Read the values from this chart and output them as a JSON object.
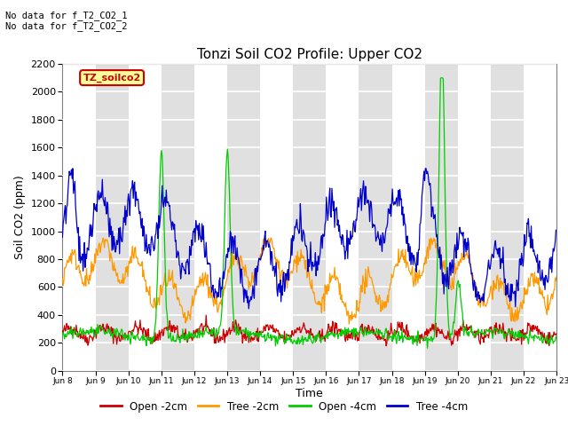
{
  "title": "Tonzi Soil CO2 Profile: Upper CO2",
  "ylabel": "Soil CO2 (ppm)",
  "xlabel": "Time",
  "annotations": [
    "No data for f_T2_CO2_1",
    "No data for f_T2_CO2_2"
  ],
  "legend_label": "TZ_soilco2",
  "ylim": [
    0,
    2200
  ],
  "yticks": [
    0,
    200,
    400,
    600,
    800,
    1000,
    1200,
    1400,
    1600,
    1800,
    2000,
    2200
  ],
  "series_labels": [
    "Open -2cm",
    "Tree -2cm",
    "Open -4cm",
    "Tree -4cm"
  ],
  "series_colors": [
    "#cc0000",
    "#ff9900",
    "#00cc00",
    "#0000cc"
  ],
  "tick_days": [
    8,
    9,
    10,
    11,
    12,
    13,
    14,
    15,
    16,
    17,
    18,
    19,
    20,
    21,
    22,
    23
  ],
  "n_points": 720,
  "plot_bg_color": "#f0f0f0"
}
